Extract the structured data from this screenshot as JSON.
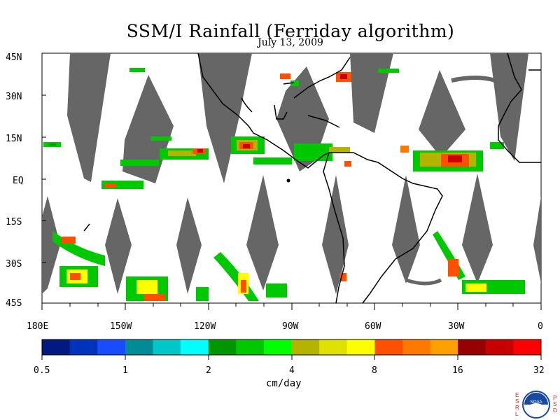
{
  "title": "SSM/I Rainfall (Ferriday algorithm)",
  "subtitle": "July 13, 2009",
  "map": {
    "lat_labels": [
      "45N",
      "30N",
      "15N",
      "EQ",
      "15S",
      "30S",
      "45S"
    ],
    "lon_labels": [
      "180E",
      "150W",
      "120W",
      "90W",
      "60W",
      "30W",
      "0"
    ],
    "swath_gap_color": "#666666",
    "coast_color": "#000000"
  },
  "colorbar": {
    "units": "cm/day",
    "tick_labels": [
      "0.5",
      "1",
      "2",
      "4",
      "8",
      "16",
      "32"
    ],
    "colors": [
      "#001a80",
      "#0033bb",
      "#1a4cff",
      "#008c96",
      "#00c8c8",
      "#00ffff",
      "#009600",
      "#00c800",
      "#00ff00",
      "#b4b400",
      "#e1e100",
      "#ffff00",
      "#ff5000",
      "#ff7800",
      "#ffa000",
      "#960000",
      "#c80000",
      "#ff0000"
    ]
  },
  "logo": {
    "left_letters": [
      "E",
      "S",
      "R",
      "L"
    ],
    "right_letters": [
      "P",
      "S",
      "D"
    ],
    "badge_text": "NOAA"
  }
}
